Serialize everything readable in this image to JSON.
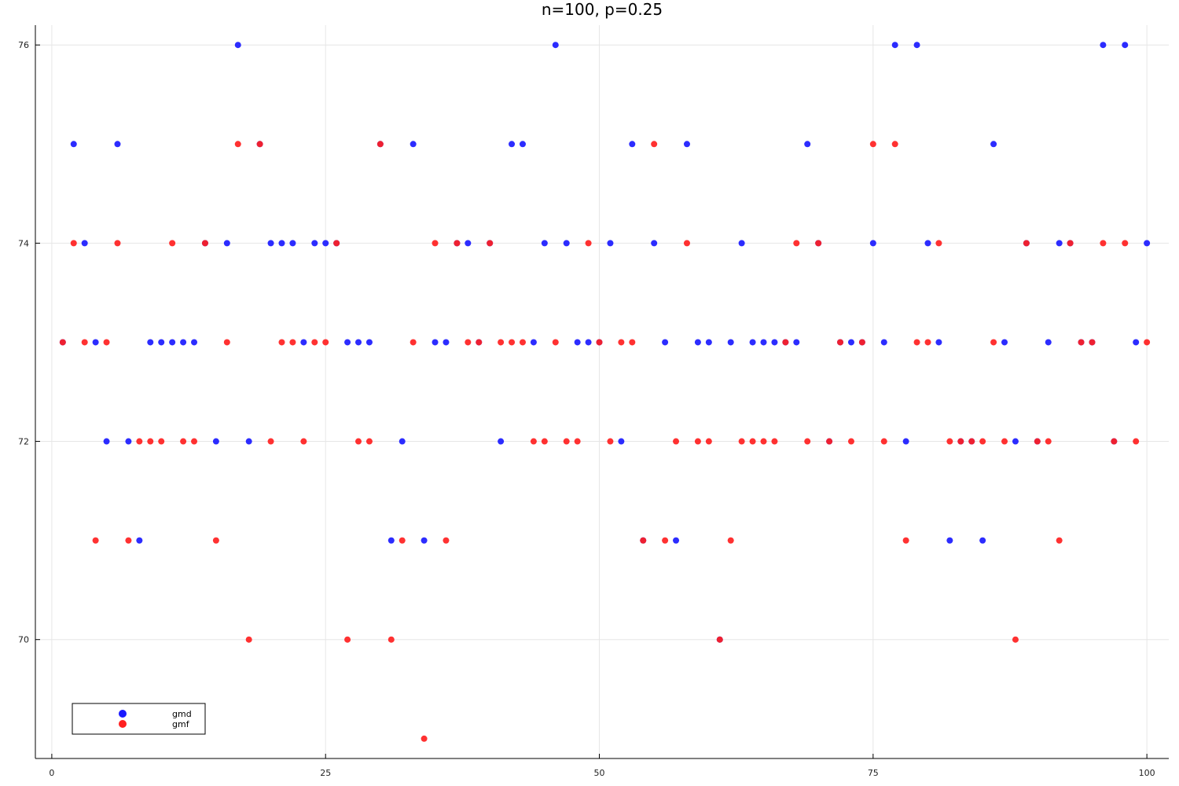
{
  "chart_data": {
    "type": "scatter",
    "title": "n=100, p=0.25",
    "xlabel": "",
    "ylabel": "",
    "xlim": [
      -1.5,
      102
    ],
    "ylim": [
      68.8,
      76.2
    ],
    "xticks": [
      0,
      25,
      50,
      75,
      100
    ],
    "yticks": [
      70,
      72,
      74,
      76
    ],
    "grid": true,
    "legend_position": "bottom-left",
    "series": [
      {
        "name": "gmd",
        "color": "#1a1aff",
        "x": [
          1,
          2,
          3,
          4,
          5,
          6,
          7,
          8,
          9,
          10,
          11,
          12,
          13,
          14,
          15,
          16,
          17,
          18,
          19,
          20,
          21,
          22,
          23,
          24,
          25,
          26,
          27,
          28,
          29,
          30,
          31,
          32,
          33,
          34,
          35,
          36,
          37,
          38,
          39,
          40,
          41,
          42,
          43,
          44,
          45,
          46,
          47,
          48,
          49,
          50,
          51,
          52,
          53,
          54,
          55,
          56,
          57,
          58,
          59,
          60,
          61,
          62,
          63,
          64,
          65,
          66,
          67,
          68,
          69,
          70,
          71,
          72,
          73,
          74,
          75,
          76,
          77,
          78,
          79,
          80,
          81,
          82,
          83,
          84,
          85,
          86,
          87,
          88,
          89,
          90,
          91,
          92,
          93,
          94,
          95,
          96,
          97,
          98,
          99,
          100
        ],
        "y": [
          73,
          75,
          74,
          73,
          72,
          75,
          72,
          71,
          73,
          73,
          73,
          73,
          73,
          74,
          72,
          74,
          76,
          72,
          75,
          74,
          74,
          74,
          73,
          74,
          74,
          74,
          73,
          73,
          73,
          75,
          71,
          72,
          75,
          71,
          73,
          73,
          74,
          74,
          73,
          74,
          72,
          75,
          75,
          73,
          74,
          76,
          74,
          73,
          73,
          73,
          74,
          72,
          75,
          71,
          74,
          73,
          71,
          75,
          73,
          73,
          70,
          73,
          74,
          73,
          73,
          73,
          73,
          73,
          75,
          74,
          72,
          73,
          73,
          73,
          74,
          73,
          76,
          72,
          76,
          74,
          73,
          71,
          72,
          72,
          71,
          75,
          73,
          72,
          74,
          72,
          73,
          74,
          74,
          73,
          73,
          76,
          72,
          76,
          73,
          74
        ]
      },
      {
        "name": "gmf",
        "color": "#ff2020",
        "x": [
          1,
          2,
          3,
          4,
          5,
          6,
          7,
          8,
          9,
          10,
          11,
          12,
          13,
          14,
          15,
          16,
          17,
          18,
          19,
          20,
          21,
          22,
          23,
          24,
          25,
          26,
          27,
          28,
          29,
          30,
          31,
          32,
          33,
          34,
          35,
          36,
          37,
          38,
          39,
          40,
          41,
          42,
          43,
          44,
          45,
          46,
          47,
          48,
          49,
          50,
          51,
          52,
          53,
          54,
          55,
          56,
          57,
          58,
          59,
          60,
          61,
          62,
          63,
          64,
          65,
          66,
          67,
          68,
          69,
          70,
          71,
          72,
          73,
          74,
          75,
          76,
          77,
          78,
          79,
          80,
          81,
          82,
          83,
          84,
          85,
          86,
          87,
          88,
          89,
          90,
          91,
          92,
          93,
          94,
          95,
          96,
          97,
          98,
          99,
          100
        ],
        "y": [
          73,
          74,
          73,
          71,
          73,
          74,
          71,
          72,
          72,
          72,
          74,
          72,
          72,
          74,
          71,
          73,
          75,
          70,
          75,
          72,
          73,
          73,
          72,
          73,
          73,
          74,
          70,
          72,
          72,
          75,
          70,
          71,
          73,
          69,
          74,
          71,
          74,
          73,
          73,
          74,
          73,
          73,
          73,
          72,
          72,
          73,
          72,
          72,
          74,
          73,
          72,
          73,
          73,
          71,
          75,
          71,
          72,
          74,
          72,
          72,
          70,
          71,
          72,
          72,
          72,
          72,
          73,
          74,
          72,
          74,
          72,
          73,
          72,
          73,
          75,
          72,
          75,
          71,
          73,
          73,
          74,
          72,
          72,
          72,
          72,
          73,
          72,
          70,
          74,
          72,
          72,
          71,
          74,
          73,
          73,
          74,
          72,
          74,
          72,
          73
        ]
      }
    ]
  }
}
